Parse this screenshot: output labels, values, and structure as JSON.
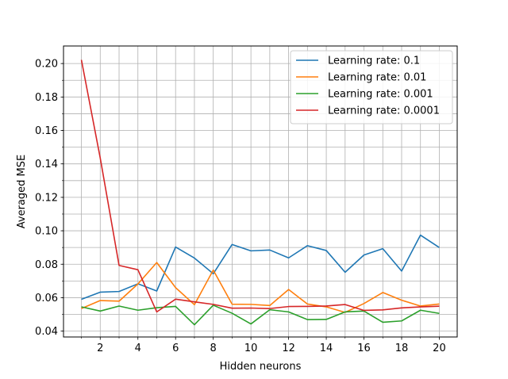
{
  "chart_data": {
    "type": "line",
    "title": "",
    "xlabel": "Hidden neurons",
    "ylabel": "Averaged MSE",
    "xlim": [
      0.05,
      20.95
    ],
    "ylim": [
      0.0365,
      0.2105
    ],
    "xticks": [
      2,
      4,
      6,
      8,
      10,
      12,
      14,
      16,
      18,
      20
    ],
    "yticks": [
      0.04,
      0.06,
      0.08,
      0.1,
      0.12,
      0.14,
      0.16,
      0.18,
      0.2
    ],
    "ytick_labels": [
      "0.04",
      "0.06",
      "0.08",
      "0.10",
      "0.12",
      "0.14",
      "0.16",
      "0.18",
      "0.20"
    ],
    "grid": true,
    "legend_position": "top-right",
    "x": [
      1,
      2,
      3,
      4,
      5,
      6,
      7,
      8,
      9,
      10,
      11,
      12,
      13,
      14,
      15,
      16,
      17,
      18,
      19,
      20
    ],
    "series": [
      {
        "name": "Learning rate: 0.1",
        "color": "#1f77b4",
        "values": [
          0.059,
          0.0633,
          0.0637,
          0.0683,
          0.064,
          0.0903,
          0.0837,
          0.0743,
          0.0918,
          0.088,
          0.0885,
          0.0838,
          0.0911,
          0.0882,
          0.0752,
          0.0855,
          0.0893,
          0.0759,
          0.0974,
          0.09
        ]
      },
      {
        "name": "Learning rate: 0.01",
        "color": "#ff7f0e",
        "values": [
          0.0535,
          0.0583,
          0.0579,
          0.0682,
          0.081,
          0.066,
          0.0558,
          0.0765,
          0.0561,
          0.056,
          0.0553,
          0.0649,
          0.0562,
          0.0545,
          0.0512,
          0.0565,
          0.0631,
          0.0585,
          0.055,
          0.0562
        ]
      },
      {
        "name": "Learning rate: 0.001",
        "color": "#2ca02c",
        "values": [
          0.0545,
          0.052,
          0.055,
          0.0525,
          0.054,
          0.0548,
          0.0438,
          0.0555,
          0.0507,
          0.0443,
          0.0528,
          0.0515,
          0.0469,
          0.047,
          0.0515,
          0.052,
          0.0453,
          0.0461,
          0.0525,
          0.0506
        ]
      },
      {
        "name": "Learning rate: 0.0001",
        "color": "#d62728",
        "values": [
          0.2022,
          0.1435,
          0.0793,
          0.0767,
          0.0515,
          0.0591,
          0.0575,
          0.056,
          0.0537,
          0.0538,
          0.0535,
          0.0547,
          0.0548,
          0.055,
          0.0559,
          0.0524,
          0.0527,
          0.0539,
          0.0545,
          0.0549
        ]
      }
    ]
  }
}
